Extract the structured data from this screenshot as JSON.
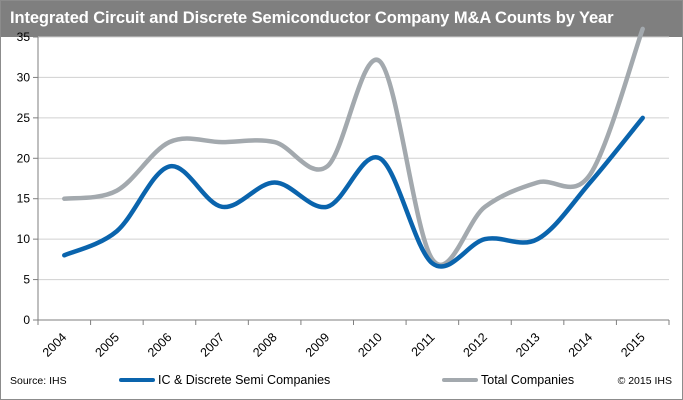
{
  "title": "Integrated Circuit and Discrete Semiconductor Company M&A Counts by Year",
  "footer": {
    "source": "Source: IHS",
    "copyright": "© 2015 IHS"
  },
  "colors": {
    "header_bg": "#7f7f7f",
    "ic_series": "#0a64ad",
    "total_series": "#a3a9ae",
    "gridline": "#d0d0d0"
  },
  "chart_data": {
    "type": "line",
    "title": "Integrated Circuit and Discrete Semiconductor Company M&A Counts by Year",
    "xlabel": "",
    "ylabel": "",
    "categories": [
      "2004",
      "2005",
      "2006",
      "2007",
      "2008",
      "2009",
      "2010",
      "2011",
      "2012",
      "2013",
      "2014",
      "2015"
    ],
    "ylim": [
      0,
      35
    ],
    "yticks": [
      0,
      5,
      10,
      15,
      20,
      25,
      30,
      35
    ],
    "grid": true,
    "smooth": true,
    "legend_position": "bottom",
    "series": [
      {
        "name": "IC & Discrete Semi Companies",
        "values": [
          8,
          11,
          19,
          14,
          17,
          14,
          20,
          7,
          10,
          10,
          17,
          25
        ]
      },
      {
        "name": "Total Companies",
        "values": [
          15,
          16,
          22,
          22,
          22,
          19,
          32,
          7.5,
          14,
          17,
          18,
          36
        ]
      }
    ]
  }
}
